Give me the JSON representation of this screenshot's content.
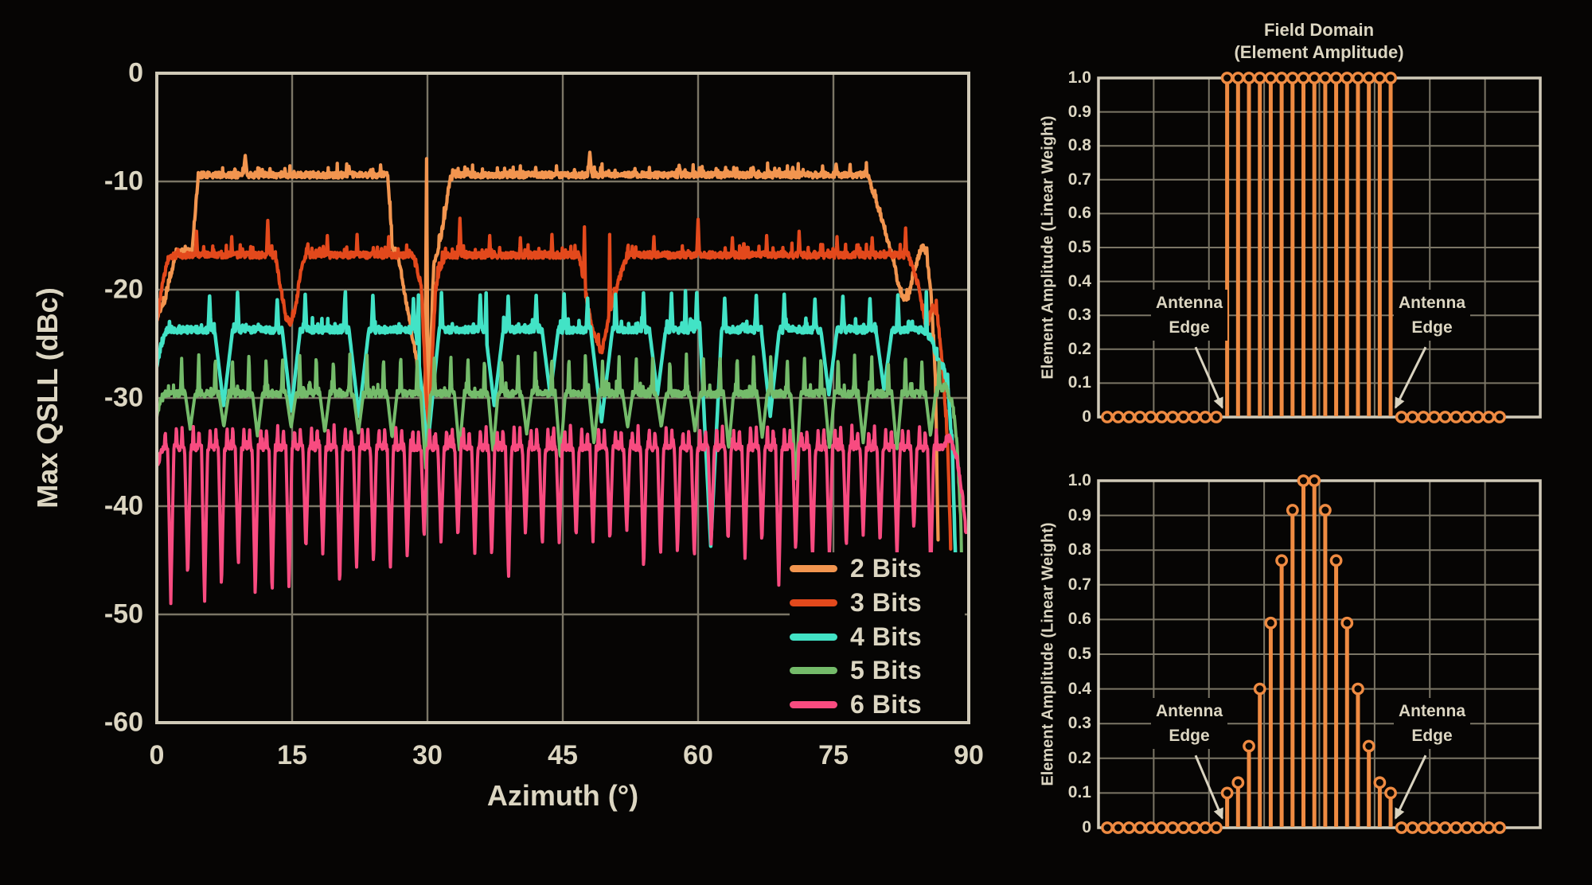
{
  "colors": {
    "background": "#060504",
    "grid": "#7b7666",
    "border": "#d0cab8",
    "text": "#dcd6c2",
    "arrow": "#d9d3c0",
    "stem": "#ef8b42",
    "stem_core": "#0d0702"
  },
  "chart_data": [
    {
      "id": "max-qsll-vs-azimuth",
      "type": "line",
      "xlabel": "Azimuth (°)",
      "ylabel": "Max QSLL (dBc)",
      "xlim": [
        0,
        90
      ],
      "ylim": [
        -60,
        0
      ],
      "x_ticks": [
        "0",
        "15",
        "30",
        "45",
        "60",
        "75",
        "90"
      ],
      "y_ticks": [
        "0",
        "-10",
        "-20",
        "-30",
        "-40",
        "-50",
        "-60"
      ],
      "grid": true,
      "legend_position": "lower right",
      "series": [
        {
          "name": "2 Bits",
          "color": "#f2954f",
          "stroke": 4.2,
          "seed": 11,
          "noise": 0.28,
          "plateau_dbc": -9.4,
          "keypoints": [
            [
              0,
              -22.5
            ],
            [
              0.9,
              -21
            ],
            [
              2.1,
              -16.7
            ],
            [
              3.9,
              -16.4
            ],
            [
              4.6,
              -9.4
            ],
            [
              25.6,
              -9.4
            ],
            [
              26.1,
              -16.2
            ],
            [
              26.7,
              -16.6
            ],
            [
              30.05,
              -32.5
            ],
            [
              30.7,
              -17.6
            ],
            [
              31.2,
              -16.3
            ],
            [
              31.9,
              -13.3
            ],
            [
              32.5,
              -9.7
            ],
            [
              33.3,
              -9.4
            ],
            [
              78.8,
              -9.4
            ],
            [
              80.2,
              -13
            ],
            [
              81.4,
              -16.6
            ],
            [
              82.5,
              -20.6
            ],
            [
              83.2,
              -21
            ],
            [
              83.8,
              -18.8
            ],
            [
              84.8,
              -15.9
            ],
            [
              85.3,
              -16.6
            ],
            [
              85.8,
              -20
            ],
            [
              86.3,
              -28
            ],
            [
              86.6,
              -43
            ]
          ],
          "spikes": [
            [
              9.8,
              -7.6,
              0.22
            ],
            [
              29.9,
              -7.9,
              0.18
            ],
            [
              48.0,
              -7.3,
              0.22
            ],
            [
              57.9,
              -8.5,
              0.16
            ],
            [
              66.1,
              -8.7,
              0.15
            ],
            [
              75.3,
              -8.4,
              0.16
            ],
            [
              21.3,
              -8.6,
              0.12
            ],
            [
              14.2,
              -8.8,
              0.1
            ],
            [
              42.0,
              -8.7,
              0.1
            ],
            [
              53.0,
              -8.8,
              0.1
            ],
            [
              62.0,
              -8.8,
              0.1
            ],
            [
              70.5,
              -8.7,
              0.1
            ]
          ]
        },
        {
          "name": "3 Bits",
          "color": "#e3491c",
          "stroke": 4.2,
          "seed": 23,
          "noise": 0.3,
          "plateau_dbc": -16.8,
          "keypoints": [
            [
              0,
              -23
            ],
            [
              0.5,
              -20
            ],
            [
              1.3,
              -17
            ],
            [
              2.2,
              -16.8
            ],
            [
              13.1,
              -16.8
            ],
            [
              14.3,
              -22.5
            ],
            [
              14.9,
              -23.2
            ],
            [
              15.5,
              -21
            ],
            [
              15.9,
              -18.6
            ],
            [
              16.5,
              -16.8
            ],
            [
              28.4,
              -16.8
            ],
            [
              29.3,
              -19.5
            ],
            [
              30.1,
              -33.5
            ],
            [
              30.9,
              -20
            ],
            [
              31.4,
              -18
            ],
            [
              32.0,
              -16.8
            ],
            [
              46.8,
              -16.8
            ],
            [
              48.2,
              -23.5
            ],
            [
              49.3,
              -25.8
            ],
            [
              50.4,
              -21.5
            ],
            [
              51.4,
              -18.6
            ],
            [
              52.2,
              -16.8
            ],
            [
              83.3,
              -16.8
            ],
            [
              84.4,
              -19.6
            ],
            [
              85.3,
              -23.6
            ],
            [
              86.0,
              -21.6
            ],
            [
              86.5,
              -22.2
            ],
            [
              87.1,
              -27
            ],
            [
              87.7,
              -35
            ],
            [
              88.0,
              -44
            ]
          ],
          "spikes": [
            [
              4.4,
              -14.6,
              0.12
            ],
            [
              8.3,
              -15.1,
              0.1
            ],
            [
              12.3,
              -13.6,
              0.15
            ],
            [
              18.9,
              -15.0,
              0.1
            ],
            [
              22.2,
              -14.9,
              0.1
            ],
            [
              25.7,
              -15.1,
              0.1
            ],
            [
              33.6,
              -13.4,
              0.15
            ],
            [
              36.9,
              -15.0,
              0.1
            ],
            [
              40.3,
              -15.2,
              0.1
            ],
            [
              43.8,
              -14.9,
              0.1
            ],
            [
              47.4,
              -14.2,
              0.12
            ],
            [
              50.2,
              -14.9,
              0.1
            ],
            [
              55.1,
              -15.1,
              0.1
            ],
            [
              60.0,
              -13.5,
              0.15
            ],
            [
              63.8,
              -15.2,
              0.1
            ],
            [
              67.6,
              -15.0,
              0.1
            ],
            [
              71.2,
              -14.6,
              0.12
            ],
            [
              75.4,
              -15.1,
              0.1
            ],
            [
              79.3,
              -15.2,
              0.1
            ],
            [
              83.0,
              -14.3,
              0.12
            ]
          ]
        },
        {
          "name": "4 Bits",
          "color": "#42e3c6",
          "stroke": 4.5,
          "seed": 37,
          "noise": 0.32,
          "plateau_dbc": -23.7,
          "keypoints": [
            [
              0,
              -27
            ],
            [
              0.5,
              -25
            ],
            [
              1.1,
              -23.7
            ],
            [
              84.9,
              -23.7
            ],
            [
              85.9,
              -24.5
            ],
            [
              86.6,
              -26.5
            ],
            [
              87.2,
              -27.2
            ],
            [
              87.7,
              -29
            ],
            [
              88.2,
              -35
            ],
            [
              88.6,
              -47
            ]
          ],
          "dips": [
            [
              7.4,
              1.0,
              7
            ],
            [
              14.9,
              1.0,
              7.5
            ],
            [
              22.4,
              1.1,
              8
            ],
            [
              30.0,
              1.3,
              11
            ],
            [
              37.4,
              1.0,
              7
            ],
            [
              43.6,
              0.9,
              6
            ],
            [
              49.3,
              1.2,
              8.5
            ],
            [
              55.5,
              0.9,
              6
            ],
            [
              61.4,
              1.2,
              20
            ],
            [
              68.0,
              1.0,
              8
            ],
            [
              74.5,
              0.9,
              6
            ],
            [
              80.6,
              0.9,
              5.5
            ]
          ],
          "flank": {
            "dx": 1.55,
            "peak": -20.6,
            "w": 0.16
          },
          "spikes": [
            [
              20.9,
              -20.2,
              0.12
            ],
            [
              29.0,
              -20.5,
              0.1
            ],
            [
              36.5,
              -20.3,
              0.1
            ],
            [
              58.6,
              -20.1,
              0.12
            ],
            [
              85.3,
              -20.2,
              0.1
            ]
          ]
        },
        {
          "name": "5 Bits",
          "color": "#74bb6a",
          "stroke": 4.0,
          "seed": 51,
          "noise": 0.32,
          "plateau_dbc": -29.6,
          "keypoints": [
            [
              0,
              -31.5
            ],
            [
              0.4,
              -30.3
            ],
            [
              0.9,
              -29.6
            ],
            [
              86.4,
              -29.6
            ],
            [
              87.4,
              -28.9
            ],
            [
              88.2,
              -30.5
            ],
            [
              88.7,
              -34
            ],
            [
              89.1,
              -41
            ],
            [
              89.3,
              -48
            ]
          ],
          "dip_gen": {
            "start": 3.7,
            "period": 3.73,
            "end": 86,
            "width": 0.55,
            "depth": 4.2,
            "jitter": 1.3,
            "deep": [
              [
                29.9,
                7
              ],
              [
                44.8,
                6
              ],
              [
                69.7,
                8
              ]
            ]
          },
          "flank": {
            "dx": 0.95,
            "peak": -26.1,
            "w": 0.13
          }
        },
        {
          "name": "6 Bits",
          "color": "#f84b80",
          "stroke": 4.0,
          "seed": 77,
          "noise": 0.3,
          "plateau_dbc": -34.6,
          "keypoints": [
            [
              0,
              -36.5
            ],
            [
              0.4,
              -35.2
            ],
            [
              0.8,
              -34.6
            ],
            [
              87.0,
              -34.6
            ],
            [
              87.9,
              -33.7
            ],
            [
              88.7,
              -35.6
            ],
            [
              89.3,
              -39
            ],
            [
              89.7,
              -42.5
            ]
          ],
          "dip_gen": {
            "start": 1.55,
            "period": 1.872,
            "end": 87,
            "width": 0.34,
            "depth": 9.8,
            "jitter": 2.2,
            "decay_amp": 5.5,
            "decay_tau": 14,
            "deep": [
              [
                69.8,
                13
              ]
            ]
          },
          "flank": {
            "dx": 0.62,
            "peak": -32.7,
            "w": 0.1
          }
        }
      ]
    },
    {
      "id": "field-domain-uniform",
      "type": "stem",
      "title_lines": [
        "Field Domain",
        "(Element Amplitude)"
      ],
      "ylabel": "Element Amplitude (Linear Weight)",
      "ylim": [
        0,
        1.0
      ],
      "y_ticks": [
        "1.0",
        "0.9",
        "0.8",
        "0.7",
        "0.6",
        "0.5",
        "0.4",
        "0.3",
        "0.2",
        "0.1",
        "0"
      ],
      "grid": true,
      "values": [
        0,
        0,
        0,
        0,
        0,
        0,
        0,
        0,
        0,
        0,
        0,
        1,
        1,
        1,
        1,
        1,
        1,
        1,
        1,
        1,
        1,
        1,
        1,
        1,
        1,
        1,
        1,
        0,
        0,
        0,
        0,
        0,
        0,
        0,
        0,
        0,
        0
      ],
      "annotations": [
        {
          "lines": [
            "Antenna",
            "Edge"
          ],
          "side": "left"
        },
        {
          "lines": [
            "Antenna",
            "Edge"
          ],
          "side": "right"
        }
      ]
    },
    {
      "id": "field-domain-tapered",
      "type": "stem",
      "title_lines": [],
      "ylabel": "Element Amplitude (Linear Weight)",
      "ylim": [
        0,
        1.0
      ],
      "y_ticks": [
        "1.0",
        "0.9",
        "0.8",
        "0.7",
        "0.6",
        "0.5",
        "0.4",
        "0.3",
        "0.2",
        "0.1",
        "0"
      ],
      "grid": true,
      "values": [
        0,
        0,
        0,
        0,
        0,
        0,
        0,
        0,
        0,
        0,
        0,
        0.1,
        0.13,
        0.235,
        0.4,
        0.59,
        0.77,
        0.915,
        1.0,
        1.0,
        0.915,
        0.77,
        0.59,
        0.4,
        0.235,
        0.13,
        0.1,
        0,
        0,
        0,
        0,
        0,
        0,
        0,
        0,
        0,
        0
      ],
      "annotations": [
        {
          "lines": [
            "Antenna",
            "Edge"
          ],
          "side": "left"
        },
        {
          "lines": [
            "Antenna",
            "Edge"
          ],
          "side": "right"
        }
      ]
    }
  ]
}
